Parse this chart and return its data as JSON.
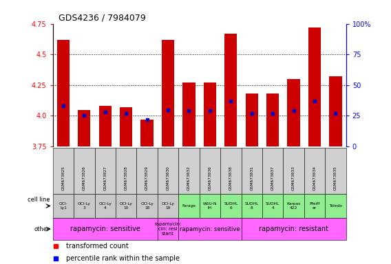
{
  "title": "GDS4236 / 7984079",
  "samples": [
    "GSM673825",
    "GSM673826",
    "GSM673827",
    "GSM673828",
    "GSM673829",
    "GSM673830",
    "GSM673832",
    "GSM673836",
    "GSM673838",
    "GSM673831",
    "GSM673837",
    "GSM673833",
    "GSM673834",
    "GSM673835"
  ],
  "transformed_counts": [
    4.62,
    4.05,
    4.08,
    4.07,
    3.97,
    4.62,
    4.27,
    4.27,
    4.67,
    4.18,
    4.18,
    4.3,
    4.72,
    4.32
  ],
  "percentile_values": [
    0.33,
    0.25,
    0.28,
    0.27,
    0.22,
    0.3,
    0.29,
    0.29,
    0.37,
    0.27,
    0.27,
    0.29,
    0.37,
    0.27
  ],
  "cell_lines": [
    "OCI-\nLy1",
    "OCI-Ly\n3",
    "OCI-Ly\n4",
    "OCI-Ly\n10",
    "OCI-Ly\n18",
    "OCI-Ly\n19",
    "Farage",
    "WSU-N\nIH",
    "SUDHL\n6",
    "SUDHL\n8",
    "SUDHL\n4",
    "Karpas\n422",
    "Pfeiff\ner",
    "Toledo"
  ],
  "cell_line_colors": [
    "#c8c8c8",
    "#c8c8c8",
    "#c8c8c8",
    "#c8c8c8",
    "#c8c8c8",
    "#c8c8c8",
    "#90ee90",
    "#90ee90",
    "#90ee90",
    "#90ee90",
    "#90ee90",
    "#90ee90",
    "#90ee90",
    "#90ee90"
  ],
  "other_blocks": [
    {
      "text": "rapamycin: sensitive",
      "start": 0,
      "end": 4,
      "color": "#ff66ff",
      "fontsize": 7
    },
    {
      "text": "rapamycin:\ncin: resi\nstant",
      "start": 5,
      "end": 5,
      "color": "#ff66ff",
      "fontsize": 5
    },
    {
      "text": "rapamycin: sensitive",
      "start": 6,
      "end": 8,
      "color": "#ff66ff",
      "fontsize": 6
    },
    {
      "text": "rapamycin: resistant",
      "start": 9,
      "end": 13,
      "color": "#ff66ff",
      "fontsize": 7
    }
  ],
  "ylim_left": [
    3.75,
    4.75
  ],
  "ylim_right": [
    0,
    100
  ],
  "yticks_left": [
    3.75,
    4.0,
    4.25,
    4.5,
    4.75
  ],
  "yticks_right": [
    0,
    25,
    50,
    75,
    100
  ],
  "bar_color": "#cc0000",
  "dot_color": "#0000cc",
  "bar_bottom": 3.75
}
